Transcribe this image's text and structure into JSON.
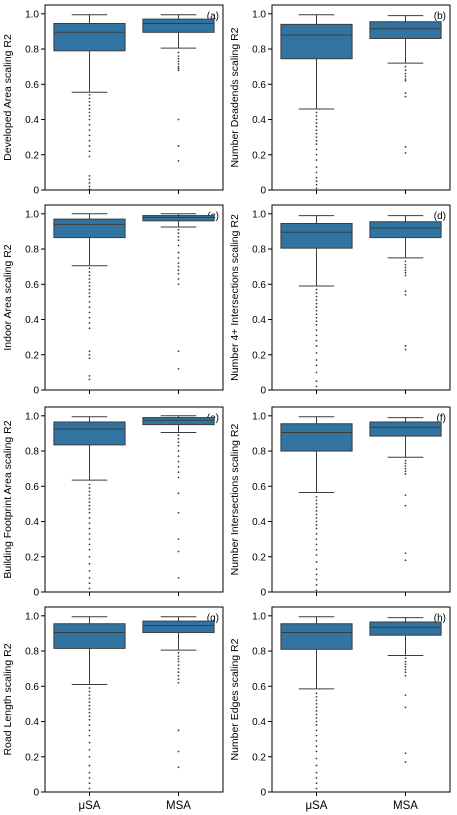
{
  "colors": {
    "box": "#3274a1",
    "line": "#3d3d3d",
    "axis": "#000000",
    "background": "#ffffff"
  },
  "chart_data": [
    {
      "type": "box",
      "panel": "(a)",
      "ylabel": "Developed Area scaling R2",
      "categories": [
        "μSA",
        "MSA"
      ],
      "ylim": [
        0,
        1.05
      ],
      "yticks": [
        0,
        0.2,
        0.4,
        0.6,
        0.8,
        1.0
      ],
      "ytick_labels": [
        "0",
        "0.2",
        "0.4",
        "0.6",
        "0.8",
        "1.0"
      ],
      "boxes": [
        {
          "whislo": 0.555,
          "q1": 0.79,
          "med": 0.895,
          "q3": 0.945,
          "whishi": 0.995,
          "fliers": [
            0.54,
            0.52,
            0.5,
            0.48,
            0.46,
            0.44,
            0.42,
            0.4,
            0.37,
            0.34,
            0.31,
            0.28,
            0.25,
            0.22,
            0.19,
            0.08,
            0.06,
            0.04,
            0.02,
            0.005
          ]
        },
        {
          "whislo": 0.805,
          "q1": 0.895,
          "med": 0.945,
          "q3": 0.97,
          "whishi": 0.995,
          "fliers": [
            0.78,
            0.76,
            0.745,
            0.73,
            0.715,
            0.7,
            0.69,
            0.68,
            0.4,
            0.25,
            0.165
          ]
        }
      ]
    },
    {
      "type": "box",
      "panel": "(b)",
      "ylabel": "Number Deadends scaling R2",
      "categories": [
        "μSA",
        "MSA"
      ],
      "ylim": [
        0,
        1.05
      ],
      "yticks": [
        0,
        0.2,
        0.4,
        0.6,
        0.8,
        1.0
      ],
      "ytick_labels": [
        "0",
        "0.2",
        "0.4",
        "0.6",
        "0.8",
        "1.0"
      ],
      "boxes": [
        {
          "whislo": 0.46,
          "q1": 0.745,
          "med": 0.88,
          "q3": 0.94,
          "whishi": 0.995,
          "fliers": [
            0.44,
            0.42,
            0.4,
            0.38,
            0.36,
            0.34,
            0.32,
            0.3,
            0.28,
            0.26,
            0.23,
            0.2,
            0.17,
            0.13,
            0.1,
            0.07,
            0.05,
            0.03,
            0.01
          ]
        },
        {
          "whislo": 0.72,
          "q1": 0.86,
          "med": 0.915,
          "q3": 0.955,
          "whishi": 0.99,
          "fliers": [
            0.7,
            0.68,
            0.66,
            0.645,
            0.63,
            0.62,
            0.55,
            0.53,
            0.245,
            0.21
          ]
        }
      ]
    },
    {
      "type": "box",
      "panel": "(c)",
      "ylabel": "Indoor Area scaling R2",
      "categories": [
        "μSA",
        "MSA"
      ],
      "ylim": [
        0,
        1.05
      ],
      "yticks": [
        0,
        0.2,
        0.4,
        0.6,
        0.8,
        1.0
      ],
      "ytick_labels": [
        "0",
        "0.2",
        "0.4",
        "0.6",
        "0.8",
        "1.0"
      ],
      "boxes": [
        {
          "whislo": 0.705,
          "q1": 0.865,
          "med": 0.94,
          "q3": 0.97,
          "whishi": 1.0,
          "fliers": [
            0.69,
            0.67,
            0.65,
            0.63,
            0.61,
            0.59,
            0.57,
            0.55,
            0.53,
            0.5,
            0.47,
            0.44,
            0.41,
            0.38,
            0.35,
            0.22,
            0.2,
            0.18,
            0.08,
            0.06
          ]
        },
        {
          "whislo": 0.925,
          "q1": 0.96,
          "med": 0.98,
          "q3": 0.99,
          "whishi": 1.0,
          "fliers": [
            0.91,
            0.89,
            0.87,
            0.85,
            0.82,
            0.78,
            0.75,
            0.72,
            0.7,
            0.68,
            0.66,
            0.63,
            0.6,
            0.22,
            0.12
          ]
        }
      ]
    },
    {
      "type": "box",
      "panel": "(d)",
      "ylabel": "Number 4+ Intersections scaling R2",
      "categories": [
        "μSA",
        "MSA"
      ],
      "ylim": [
        0,
        1.05
      ],
      "yticks": [
        0,
        0.2,
        0.4,
        0.6,
        0.8,
        1.0
      ],
      "ytick_labels": [
        "0",
        "0.2",
        "0.4",
        "0.6",
        "0.8",
        "1.0"
      ],
      "boxes": [
        {
          "whislo": 0.59,
          "q1": 0.805,
          "med": 0.895,
          "q3": 0.945,
          "whishi": 0.99,
          "fliers": [
            0.57,
            0.55,
            0.53,
            0.51,
            0.49,
            0.47,
            0.45,
            0.43,
            0.41,
            0.39,
            0.37,
            0.34,
            0.31,
            0.28,
            0.25,
            0.21,
            0.17,
            0.14,
            0.1,
            0.05,
            0.02
          ]
        },
        {
          "whislo": 0.75,
          "q1": 0.865,
          "med": 0.92,
          "q3": 0.955,
          "whishi": 0.99,
          "fliers": [
            0.73,
            0.71,
            0.695,
            0.68,
            0.665,
            0.65,
            0.56,
            0.54,
            0.25,
            0.23
          ]
        }
      ]
    },
    {
      "type": "box",
      "panel": "(e)",
      "ylabel": "Building Footprint Area scaling R2",
      "categories": [
        "μSA",
        "MSA"
      ],
      "ylim": [
        0,
        1.05
      ],
      "yticks": [
        0,
        0.2,
        0.4,
        0.6,
        0.8,
        1.0
      ],
      "ytick_labels": [
        "0",
        "0.2",
        "0.4",
        "0.6",
        "0.8",
        "1.0"
      ],
      "boxes": [
        {
          "whislo": 0.635,
          "q1": 0.835,
          "med": 0.925,
          "q3": 0.965,
          "whishi": 0.995,
          "fliers": [
            0.61,
            0.59,
            0.57,
            0.55,
            0.53,
            0.51,
            0.49,
            0.47,
            0.45,
            0.42,
            0.39,
            0.36,
            0.33,
            0.3,
            0.27,
            0.24,
            0.2,
            0.16,
            0.12,
            0.08,
            0.05,
            0.02
          ]
        },
        {
          "whislo": 0.905,
          "q1": 0.95,
          "med": 0.975,
          "q3": 0.99,
          "whishi": 1.0,
          "fliers": [
            0.89,
            0.87,
            0.85,
            0.83,
            0.8,
            0.77,
            0.74,
            0.71,
            0.68,
            0.65,
            0.56,
            0.45,
            0.3,
            0.23,
            0.08
          ]
        }
      ]
    },
    {
      "type": "box",
      "panel": "(f)",
      "ylabel": "Number Intersections scaling R2",
      "categories": [
        "μSA",
        "MSA"
      ],
      "ylim": [
        0,
        1.05
      ],
      "yticks": [
        0,
        0.2,
        0.4,
        0.6,
        0.8,
        1.0
      ],
      "ytick_labels": [
        "0",
        "0.2",
        "0.4",
        "0.6",
        "0.8",
        "1.0"
      ],
      "boxes": [
        {
          "whislo": 0.565,
          "q1": 0.8,
          "med": 0.905,
          "q3": 0.955,
          "whishi": 0.995,
          "fliers": [
            0.54,
            0.52,
            0.5,
            0.48,
            0.46,
            0.44,
            0.42,
            0.4,
            0.38,
            0.36,
            0.33,
            0.3,
            0.27,
            0.24,
            0.21,
            0.17,
            0.13,
            0.1,
            0.07,
            0.04,
            0.01
          ]
        },
        {
          "whislo": 0.765,
          "q1": 0.885,
          "med": 0.935,
          "q3": 0.965,
          "whishi": 0.99,
          "fliers": [
            0.745,
            0.73,
            0.715,
            0.7,
            0.685,
            0.67,
            0.55,
            0.49,
            0.22,
            0.18
          ]
        }
      ]
    },
    {
      "type": "box",
      "panel": "(g)",
      "ylabel": "Road Length scaling R2",
      "categories": [
        "μSA",
        "MSA"
      ],
      "ylim": [
        0,
        1.05
      ],
      "yticks": [
        0,
        0.2,
        0.4,
        0.6,
        0.8,
        1.0
      ],
      "ytick_labels": [
        "0",
        "0.2",
        "0.4",
        "0.6",
        "0.8",
        "1.0"
      ],
      "boxes": [
        {
          "whislo": 0.61,
          "q1": 0.815,
          "med": 0.905,
          "q3": 0.955,
          "whishi": 0.995,
          "fliers": [
            0.59,
            0.57,
            0.55,
            0.53,
            0.51,
            0.49,
            0.47,
            0.45,
            0.43,
            0.41,
            0.38,
            0.35,
            0.32,
            0.28,
            0.24,
            0.2,
            0.15,
            0.11,
            0.08,
            0.05,
            0.02
          ]
        },
        {
          "whislo": 0.805,
          "q1": 0.905,
          "med": 0.945,
          "q3": 0.97,
          "whishi": 0.995,
          "fliers": [
            0.79,
            0.77,
            0.755,
            0.74,
            0.72,
            0.7,
            0.68,
            0.66,
            0.64,
            0.62,
            0.35,
            0.23,
            0.14
          ]
        }
      ]
    },
    {
      "type": "box",
      "panel": "(h)",
      "ylabel": "Number Edges scaling R2",
      "categories": [
        "μSA",
        "MSA"
      ],
      "ylim": [
        0,
        1.05
      ],
      "yticks": [
        0,
        0.2,
        0.4,
        0.6,
        0.8,
        1.0
      ],
      "ytick_labels": [
        "0",
        "0.2",
        "0.4",
        "0.6",
        "0.8",
        "1.0"
      ],
      "boxes": [
        {
          "whislo": 0.585,
          "q1": 0.81,
          "med": 0.905,
          "q3": 0.955,
          "whishi": 0.995,
          "fliers": [
            0.56,
            0.54,
            0.52,
            0.5,
            0.48,
            0.46,
            0.44,
            0.42,
            0.4,
            0.38,
            0.35,
            0.32,
            0.29,
            0.26,
            0.23,
            0.19,
            0.15,
            0.11,
            0.08,
            0.05,
            0.02
          ]
        },
        {
          "whislo": 0.775,
          "q1": 0.89,
          "med": 0.935,
          "q3": 0.965,
          "whishi": 0.99,
          "fliers": [
            0.76,
            0.74,
            0.725,
            0.71,
            0.695,
            0.68,
            0.66,
            0.55,
            0.48,
            0.22,
            0.17
          ]
        }
      ]
    }
  ]
}
